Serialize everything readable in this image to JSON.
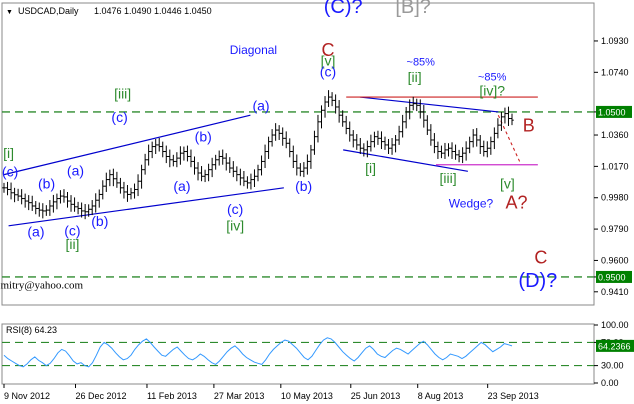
{
  "header": {
    "collapse_glyph": "▼",
    "symbol": "USDCAD,Daily",
    "ohlc": "1.0476 1.0490 1.0446 1.0450"
  },
  "colors": {
    "bar": "#000000",
    "channel": "#0000cd",
    "wave_blue": "#1a1aff",
    "wave_green": "#2e8b2e",
    "wave_red": "#b22222",
    "wave_gray": "#9a9a9a",
    "dashed_level": "#2e8b2e",
    "resistance": "#cc2222",
    "support": "#cc33cc",
    "price_marker_bg": "#008000"
  },
  "chart_data": [
    {
      "type": "bar",
      "subtype": "ohlc",
      "title": "USDCAD,Daily",
      "x_range": [
        "2012-11-09",
        "2013-10-09"
      ],
      "ylim": [
        0.933,
        1.116
      ],
      "y_ticks": [
        "1.0930",
        "1.0740",
        "1.0500",
        "1.0360",
        "1.0170",
        "0.9980",
        "0.9790",
        "0.9600",
        "0.9500",
        "0.9410"
      ],
      "x_ticks": [
        "9 Nov 2012",
        "26 Dec 2012",
        "11 Feb 2013",
        "27 Mar 2013",
        "10 May 2013",
        "25 Jun 2013",
        "8 Aug 2013",
        "23 Sep 2013"
      ],
      "grid": false,
      "closes": [
        1.004,
        1.003,
        1.001,
        0.9998,
        0.999,
        0.9975,
        0.996,
        0.995,
        0.993,
        0.9915,
        0.9905,
        0.99,
        0.9905,
        0.993,
        0.9955,
        0.9975,
        0.999,
        0.9985,
        0.996,
        0.994,
        0.9925,
        0.9915,
        0.99,
        0.9895,
        0.991,
        0.993,
        0.9965,
        1.0,
        1.005,
        1.009,
        1.012,
        1.0095,
        1.007,
        1.004,
        1.0015,
        1.0,
        1.001,
        1.003,
        1.008,
        1.015,
        1.021,
        1.026,
        1.029,
        1.03,
        1.029,
        1.026,
        1.023,
        1.021,
        1.02,
        1.022,
        1.025,
        1.026,
        1.023,
        1.02,
        1.016,
        1.013,
        1.011,
        1.012,
        1.015,
        1.018,
        1.021,
        1.023,
        1.022,
        1.019,
        1.016,
        1.014,
        1.012,
        1.01,
        1.008,
        1.007,
        1.009,
        1.011,
        1.015,
        1.02,
        1.026,
        1.032,
        1.036,
        1.039,
        1.037,
        1.034,
        1.031,
        1.026,
        1.02,
        1.016,
        1.014,
        1.016,
        1.02,
        1.027,
        1.035,
        1.044,
        1.051,
        1.056,
        1.059,
        1.057,
        1.053,
        1.048,
        1.044,
        1.04,
        1.036,
        1.033,
        1.03,
        1.028,
        1.027,
        1.029,
        1.032,
        1.035,
        1.034,
        1.032,
        1.03,
        1.028,
        1.03,
        1.033,
        1.038,
        1.044,
        1.05,
        1.054,
        1.055,
        1.054,
        1.05,
        1.045,
        1.039,
        1.033,
        1.029,
        1.026,
        1.025,
        1.027,
        1.028,
        1.026,
        1.024,
        1.023,
        1.025,
        1.028,
        1.032,
        1.036,
        1.033,
        1.029,
        1.026,
        1.028,
        1.032,
        1.037,
        1.042,
        1.047,
        1.049,
        1.046,
        1.045
      ],
      "annotations": [
        {
          "text": "(C)?",
          "x": "2013-06-20",
          "y": 1.11,
          "color": "wave_blue",
          "size": 20
        },
        {
          "text": "[B]?",
          "x": "2013-08-05",
          "y": 1.11,
          "color": "wave_gray",
          "size": 20
        },
        {
          "text": "C",
          "x": "2013-06-10",
          "y": 1.084,
          "color": "wave_red",
          "size": 18
        },
        {
          "text": "Diagonal",
          "x": "2013-04-22",
          "y": 1.085,
          "color": "wave_blue",
          "size": 12
        },
        {
          "text": "[v]",
          "x": "2013-06-10",
          "y": 1.078,
          "color": "wave_green",
          "size": 14
        },
        {
          "text": "(c)",
          "x": "2013-06-10",
          "y": 1.0715,
          "color": "wave_blue",
          "size": 14
        },
        {
          "text": "~85%",
          "x": "2013-08-10",
          "y": 1.078,
          "color": "wave_blue",
          "size": 11
        },
        {
          "text": "[ii]",
          "x": "2013-08-06",
          "y": 1.068,
          "color": "wave_green",
          "size": 14
        },
        {
          "text": "~85%",
          "x": "2013-09-26",
          "y": 1.069,
          "color": "wave_blue",
          "size": 11
        },
        {
          "text": "[iv]?",
          "x": "2013-09-26",
          "y": 1.06,
          "color": "wave_green",
          "size": 14
        },
        {
          "text": "B",
          "x": "2013-10-20",
          "y": 1.038,
          "color": "wave_red",
          "size": 18
        },
        {
          "text": "[iii]",
          "x": "2013-01-26",
          "y": 1.058,
          "color": "wave_green",
          "size": 14
        },
        {
          "text": "(c)",
          "x": "2013-01-24",
          "y": 1.044,
          "color": "wave_blue",
          "size": 14
        },
        {
          "text": "(a)",
          "x": "2013-04-27",
          "y": 1.051,
          "color": "wave_blue",
          "size": 14
        },
        {
          "text": "(b)",
          "x": "2013-03-20",
          "y": 1.032,
          "color": "wave_blue",
          "size": 14
        },
        {
          "text": "[i]",
          "x": "2012-11-12",
          "y": 1.022,
          "color": "wave_green",
          "size": 14
        },
        {
          "text": "(c)",
          "x": "2012-11-13",
          "y": 1.011,
          "color": "wave_blue",
          "size": 14
        },
        {
          "text": "(a)",
          "x": "2012-12-26",
          "y": 1.0115,
          "color": "wave_blue",
          "size": 14
        },
        {
          "text": "(b)",
          "x": "2012-12-07",
          "y": 1.0035,
          "color": "wave_blue",
          "size": 14
        },
        {
          "text": "(a)",
          "x": "2013-03-06",
          "y": 1.002,
          "color": "wave_blue",
          "size": 14
        },
        {
          "text": "(b)",
          "x": "2013-05-25",
          "y": 1.002,
          "color": "wave_blue",
          "size": 14
        },
        {
          "text": "(c)",
          "x": "2013-04-10",
          "y": 0.988,
          "color": "wave_blue",
          "size": 14
        },
        {
          "text": "[iv]",
          "x": "2013-04-10",
          "y": 0.978,
          "color": "wave_green",
          "size": 14
        },
        {
          "text": "[i]",
          "x": "2013-07-08",
          "y": 1.013,
          "color": "wave_green",
          "size": 14
        },
        {
          "text": "[iii]",
          "x": "2013-08-28",
          "y": 1.007,
          "color": "wave_green",
          "size": 14
        },
        {
          "text": "[v]",
          "x": "2013-10-06",
          "y": 1.0035,
          "color": "wave_green",
          "size": 14
        },
        {
          "text": "A?",
          "x": "2013-10-12",
          "y": 0.9915,
          "color": "wave_red",
          "size": 18
        },
        {
          "text": "Wedge?",
          "x": "2013-09-12",
          "y": 0.992,
          "color": "wave_blue",
          "size": 12
        },
        {
          "text": "(a)",
          "x": "2012-11-30",
          "y": 0.9745,
          "color": "wave_blue",
          "size": 14
        },
        {
          "text": "(c)",
          "x": "2012-12-24",
          "y": 0.975,
          "color": "wave_blue",
          "size": 14
        },
        {
          "text": "[ii]",
          "x": "2012-12-24",
          "y": 0.967,
          "color": "wave_green",
          "size": 14
        },
        {
          "text": "(b)",
          "x": "2013-01-11",
          "y": 0.981,
          "color": "wave_blue",
          "size": 14
        },
        {
          "text": "C",
          "x": "2013-10-28",
          "y": 0.958,
          "color": "wave_red",
          "size": 18
        },
        {
          "text": "(D)?",
          "x": "2013-10-26",
          "y": 0.944,
          "color": "wave_blue",
          "size": 20
        },
        {
          "text": "forDmitry@yahoo.com",
          "x": "2012-11-27",
          "y": 0.943,
          "color": "bar",
          "size": 11
        }
      ],
      "levels": [
        {
          "label": "1.0500",
          "y": 1.05,
          "style": "dashed"
        },
        {
          "label": "0.9500",
          "y": 0.95,
          "style": "dashed"
        }
      ]
    },
    {
      "type": "line",
      "title": "RSI(8) 64.23",
      "ylim": [
        0,
        100
      ],
      "y_ticks": [
        "100.00",
        "70.00",
        "30.00",
        "0.00"
      ],
      "marker_label": "64.2366",
      "levels": [
        70,
        30
      ],
      "values": [
        48,
        42,
        38,
        34,
        30,
        28,
        33,
        40,
        45,
        39,
        35,
        30,
        34,
        42,
        52,
        58,
        55,
        47,
        38,
        33,
        35,
        30,
        28,
        35,
        48,
        62,
        70,
        66,
        60,
        52,
        45,
        40,
        42,
        48,
        58,
        66,
        72,
        76,
        70,
        62,
        55,
        48,
        46,
        52,
        58,
        62,
        55,
        48,
        42,
        40,
        44,
        50,
        46,
        40,
        35,
        32,
        38,
        46,
        54,
        60,
        64,
        58,
        50,
        44,
        40,
        36,
        34,
        32,
        40,
        50,
        58,
        64,
        70,
        74,
        72,
        66,
        60,
        52,
        44,
        40,
        46,
        56,
        66,
        74,
        78,
        76,
        70,
        62,
        54,
        48,
        42,
        38,
        44,
        52,
        60,
        64,
        58,
        50,
        46,
        44,
        50,
        56,
        60,
        58,
        54,
        50,
        56,
        62,
        68,
        72,
        66,
        58,
        50,
        44,
        40,
        44,
        50,
        48,
        46,
        42,
        46,
        52,
        58,
        64,
        70,
        66,
        60,
        54,
        58,
        62,
        68,
        66,
        64
      ]
    }
  ]
}
